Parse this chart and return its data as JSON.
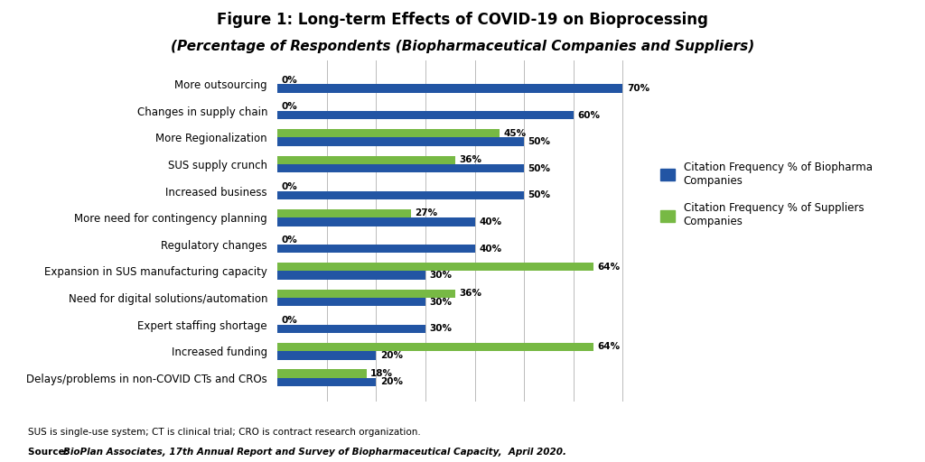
{
  "title_line1": "Figure 1: Long-term Effects of COVID-19 on Bioprocessing",
  "title_line2": "(Percentage of Respondents (Biopharmaceutical Companies and Suppliers)",
  "categories": [
    "More outsourcing",
    "Changes in supply chain",
    "More Regionalization",
    "SUS supply crunch",
    "Increased business",
    "More need for contingency planning",
    "Regulatory changes",
    "Expansion in SUS manufacturing capacity",
    "Need for digital solutions/automation",
    "Expert staffing shortage",
    "Increased funding",
    "Delays/problems in non-COVID CTs and CROs"
  ],
  "biopharma_values": [
    70,
    60,
    50,
    50,
    50,
    40,
    40,
    30,
    30,
    30,
    20,
    20
  ],
  "supplier_values": [
    0,
    0,
    45,
    36,
    0,
    27,
    0,
    64,
    36,
    0,
    64,
    18
  ],
  "biopharma_color": "#2255a4",
  "supplier_color": "#77b944",
  "bar_height": 0.32,
  "xlim": [
    0,
    75
  ],
  "grid_ticks": [
    10,
    20,
    30,
    40,
    50,
    60,
    70
  ],
  "legend_biopharma": "Citation Frequency % of Biopharma\nCompanies",
  "legend_supplier": "Citation Frequency % of Suppliers\nCompanies",
  "footnote1": "SUS is single-use system; CT is clinical trial; CRO is contract research organization.",
  "source_prefix": "Source: ",
  "source_rest": "BioPlan Associates, 17th Annual Report and Survey of Biopharmaceutical Capacity,  April 2020.",
  "background_color": "#ffffff"
}
